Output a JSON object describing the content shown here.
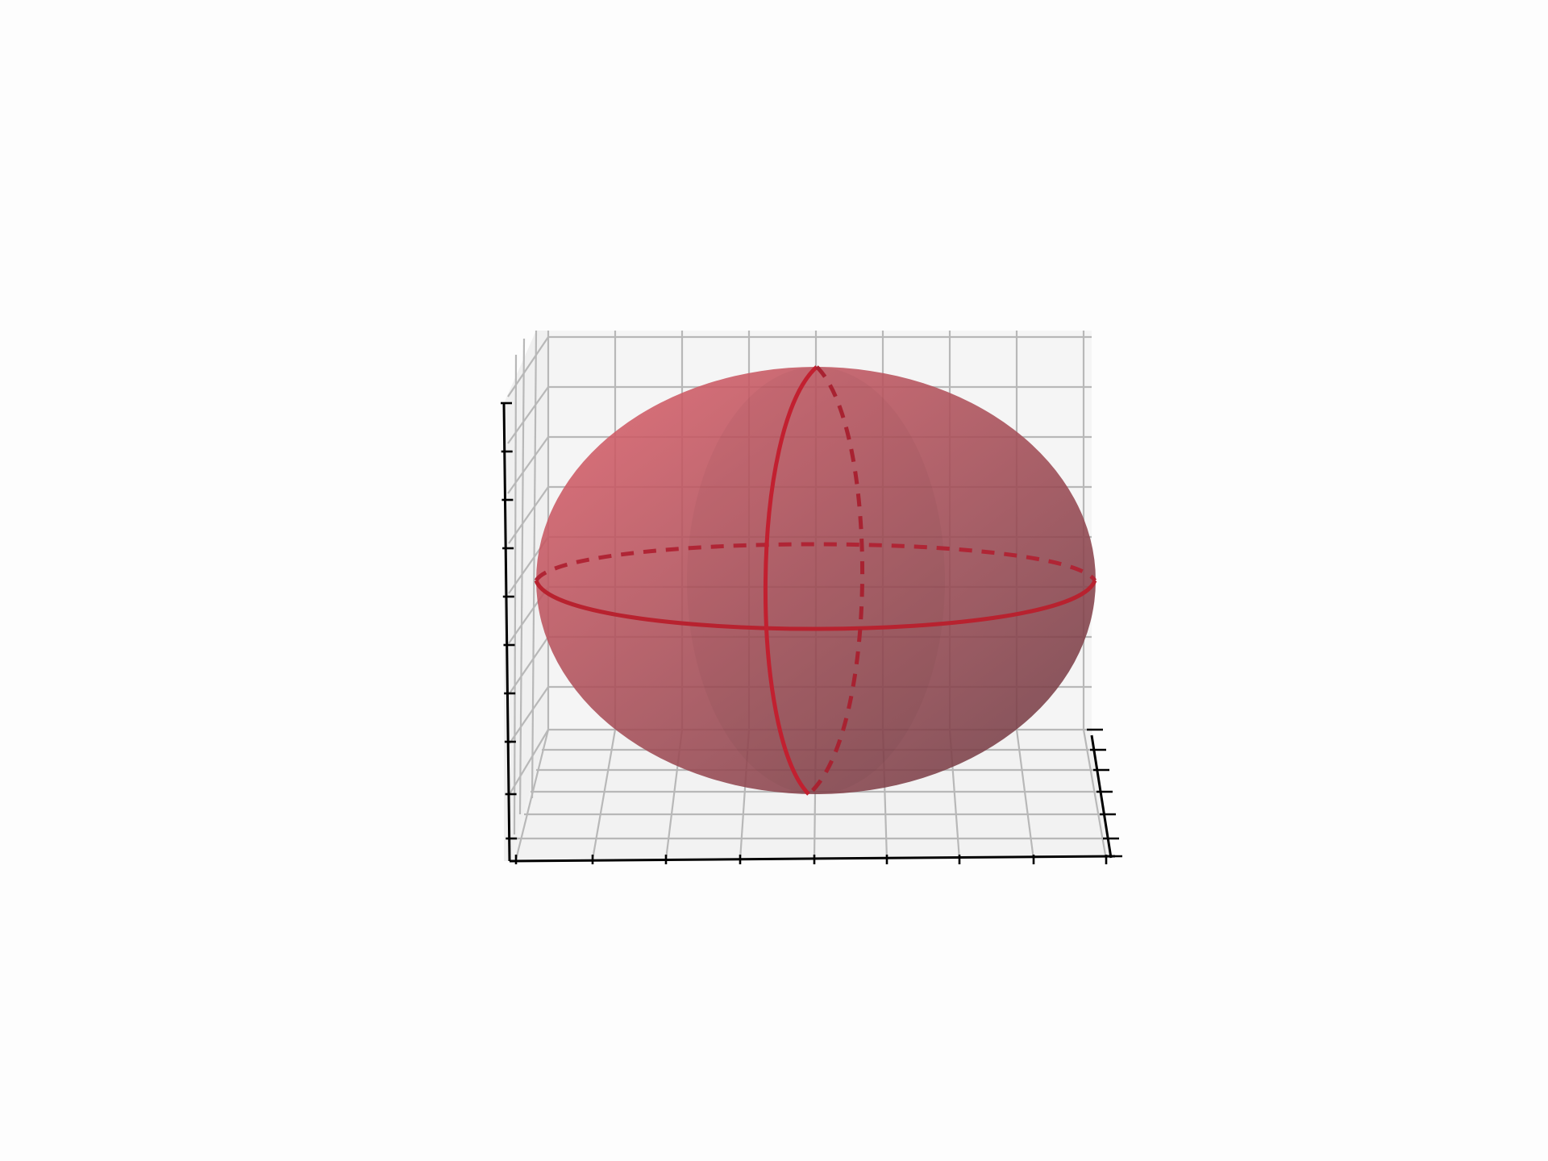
{
  "chart_data": {
    "type": "3d-surface",
    "title": "",
    "xlabel": "",
    "ylabel": "",
    "zlabel": "",
    "grid": true,
    "tick_labels_visible": false,
    "surface": {
      "shape": "ellipsoid",
      "semi_axes": {
        "x": 3,
        "y": 2,
        "z": 2
      },
      "face_color": "#d9404f",
      "alpha": 0.8
    },
    "curves": [
      {
        "name": "equator",
        "plane": "z=0",
        "front": "solid",
        "back": "dashed",
        "color": "#cc2233"
      },
      {
        "name": "meridian",
        "plane": "x=0",
        "front": "solid",
        "back": "dashed",
        "color": "#cc2233"
      }
    ]
  },
  "colors": {
    "background": "#fdfdfd",
    "pane": "#f2f2f2",
    "grid": "#b8b8b8",
    "axis": "#000000",
    "curve": "#cc2233",
    "surface_light": "#e0616c",
    "surface_dark": "#6a3a42"
  }
}
